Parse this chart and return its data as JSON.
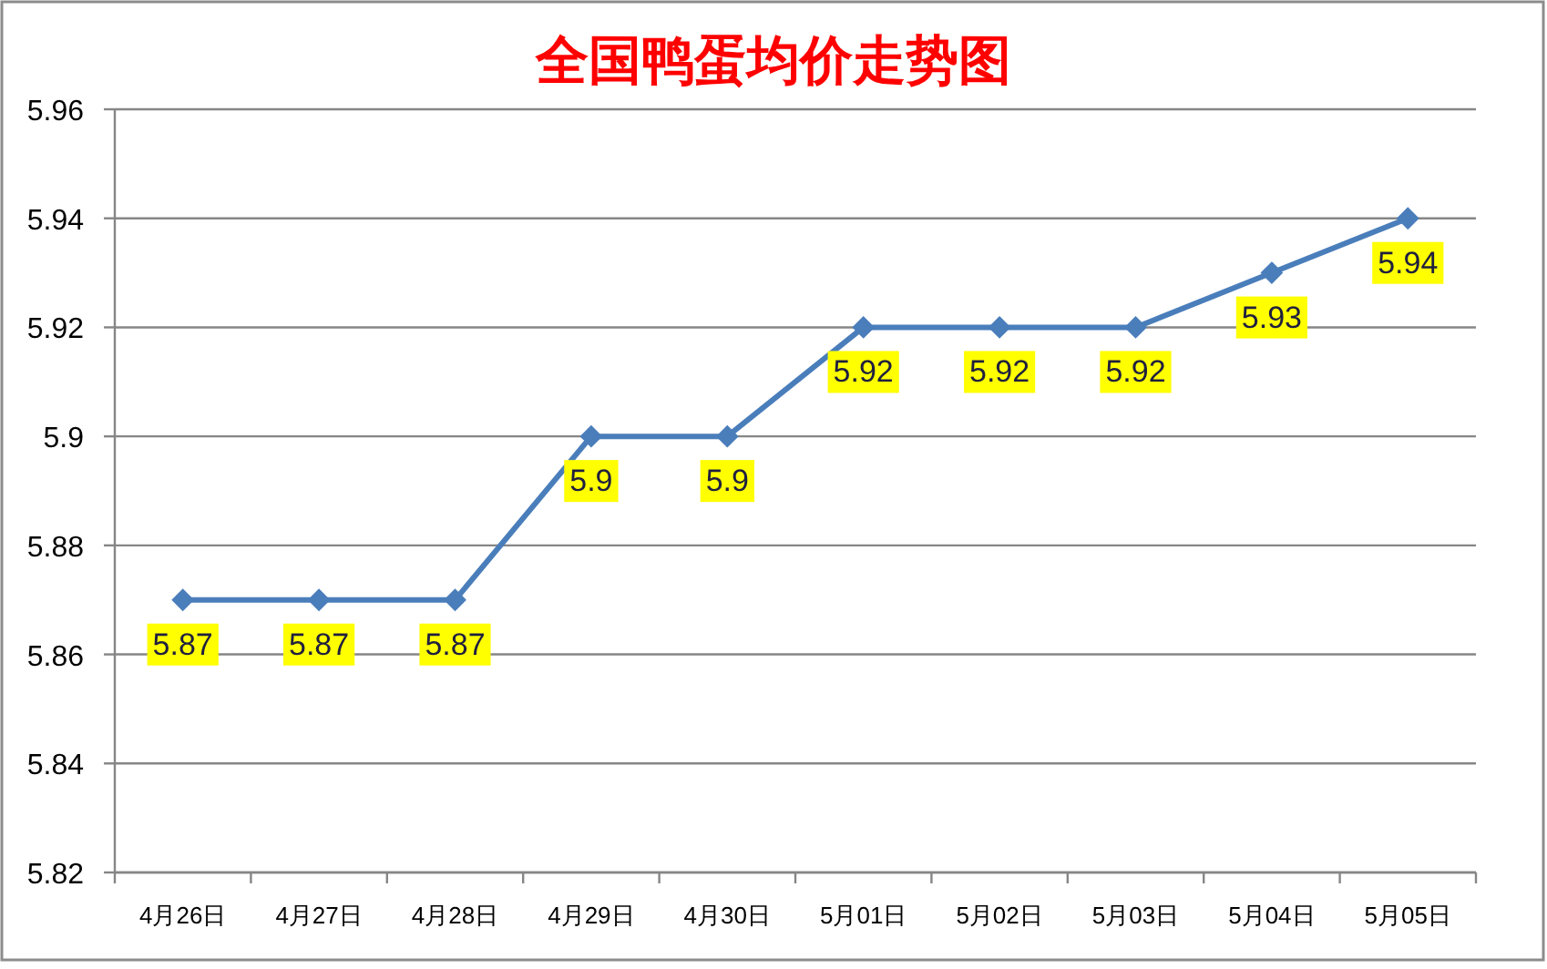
{
  "chart_data": {
    "type": "line",
    "title": "全国鸭蛋均价走势图",
    "categories": [
      "4月26日",
      "4月27日",
      "4月28日",
      "4月29日",
      "4月30日",
      "5月01日",
      "5月02日",
      "5月03日",
      "5月04日",
      "5月05日"
    ],
    "series": [
      {
        "color": "#4a7ebb",
        "values": [
          5.87,
          5.87,
          5.87,
          5.9,
          5.9,
          5.92,
          5.92,
          5.92,
          5.93,
          5.94
        ]
      }
    ],
    "ylim": [
      5.82,
      5.96
    ],
    "yticks": [
      5.82,
      5.84,
      5.86,
      5.88,
      5.9,
      5.92,
      5.94,
      5.96
    ],
    "grid": "y",
    "marker": "diamond",
    "line_style": "solid",
    "data_labels": true
  }
}
